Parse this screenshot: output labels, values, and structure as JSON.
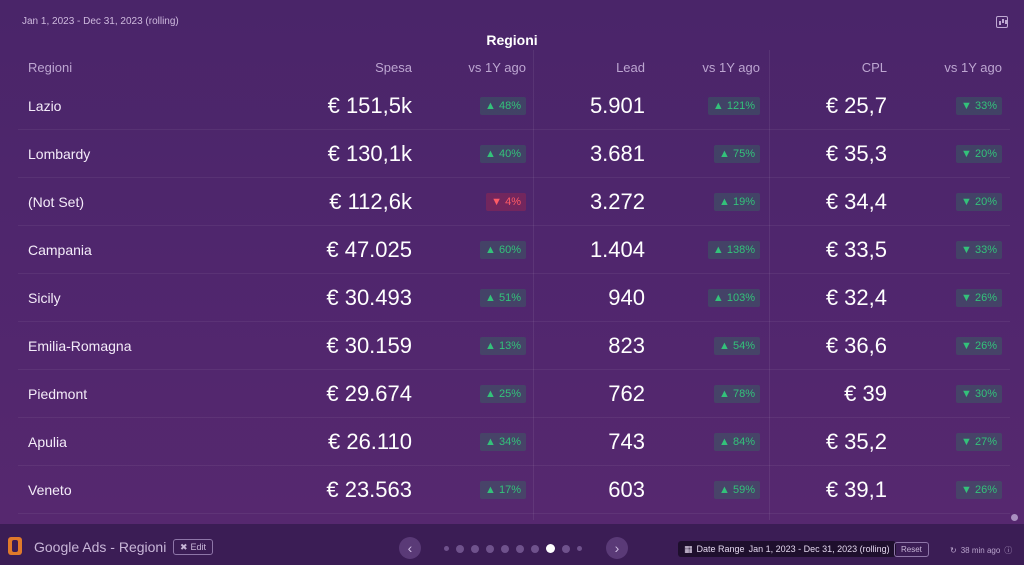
{
  "header": {
    "date_range": "Jan 1, 2023 - Dec 31, 2023 (rolling)",
    "title": "Regioni",
    "chart_icon": "bar-chart-icon"
  },
  "table": {
    "columns": [
      "Regioni",
      "Spesa",
      "vs 1Y ago",
      "Lead",
      "vs 1Y ago",
      "CPL",
      "vs 1Y ago"
    ],
    "rows": [
      {
        "region": "Lazio",
        "spesa": "€ 151,5k",
        "spesa_chg": "▲ 48%",
        "lead": "5.901",
        "lead_chg": "▲ 121%",
        "cpl": "€ 25,7",
        "cpl_chg": "▼ 33%"
      },
      {
        "region": "Lombardy",
        "spesa": "€ 130,1k",
        "spesa_chg": "▲ 40%",
        "lead": "3.681",
        "lead_chg": "▲ 75%",
        "cpl": "€ 35,3",
        "cpl_chg": "▼ 20%"
      },
      {
        "region": "(Not Set)",
        "spesa": "€ 112,6k",
        "spesa_chg": "▼ 4%",
        "lead": "3.272",
        "lead_chg": "▲ 19%",
        "cpl": "€ 34,4",
        "cpl_chg": "▼ 20%"
      },
      {
        "region": "Campania",
        "spesa": "€ 47.025",
        "spesa_chg": "▲ 60%",
        "lead": "1.404",
        "lead_chg": "▲ 138%",
        "cpl": "€ 33,5",
        "cpl_chg": "▼ 33%"
      },
      {
        "region": "Sicily",
        "spesa": "€ 30.493",
        "spesa_chg": "▲ 51%",
        "lead": "940",
        "lead_chg": "▲ 103%",
        "cpl": "€ 32,4",
        "cpl_chg": "▼ 26%"
      },
      {
        "region": "Emilia-Romagna",
        "spesa": "€ 30.159",
        "spesa_chg": "▲ 13%",
        "lead": "823",
        "lead_chg": "▲ 54%",
        "cpl": "€ 36,6",
        "cpl_chg": "▼ 26%"
      },
      {
        "region": "Piedmont",
        "spesa": "€ 29.674",
        "spesa_chg": "▲ 25%",
        "lead": "762",
        "lead_chg": "▲ 78%",
        "cpl": "€ 39",
        "cpl_chg": "▼ 30%"
      },
      {
        "region": "Apulia",
        "spesa": "€ 26.110",
        "spesa_chg": "▲ 34%",
        "lead": "743",
        "lead_chg": "▲ 84%",
        "cpl": "€ 35,2",
        "cpl_chg": "▼ 27%"
      },
      {
        "region": "Veneto",
        "spesa": "€ 23.563",
        "spesa_chg": "▲ 17%",
        "lead": "603",
        "lead_chg": "▲ 59%",
        "cpl": "€ 39,1",
        "cpl_chg": "▼ 26%"
      }
    ]
  },
  "footer": {
    "dashboard_title": "Google Ads - Regioni",
    "edit_label": "Edit",
    "prev_label": "‹",
    "next_label": "›",
    "date_range_label": "Date Range",
    "date_range_value": "Jan 1, 2023 - Dec 31, 2023 (rolling)",
    "reset_label": "Reset",
    "updated": "38 min ago"
  },
  "colors": {
    "background": "#4b2468",
    "positive": "#33c27a",
    "negative": "#ff5b66"
  }
}
